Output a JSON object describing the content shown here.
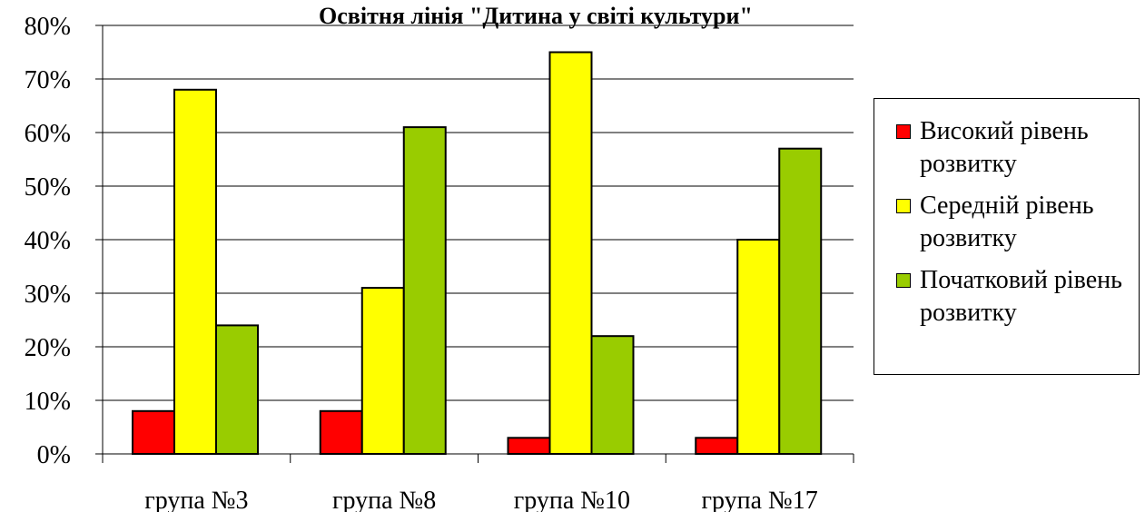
{
  "chart_data": {
    "type": "bar",
    "title": "Освітня лінія \"Дитина у світі культури\"",
    "categories": [
      "група №3",
      "група №8",
      "група №10",
      "група №17"
    ],
    "series": [
      {
        "name": "Високий рівень розвитку",
        "color": "#ff0000",
        "values": [
          8,
          8,
          3,
          3
        ]
      },
      {
        "name": "Середній рівень розвитку",
        "color": "#ffff00",
        "values": [
          68,
          31,
          75,
          40
        ]
      },
      {
        "name": "Початковий рівень розвитку",
        "color": "#99cc00",
        "values": [
          24,
          61,
          22,
          57
        ]
      }
    ],
    "ylim": [
      0,
      80
    ],
    "yticks": [
      {
        "value": 0,
        "label": "0%"
      },
      {
        "value": 10,
        "label": "10%"
      },
      {
        "value": 20,
        "label": "20%"
      },
      {
        "value": 30,
        "label": "30%"
      },
      {
        "value": 40,
        "label": "40%"
      },
      {
        "value": 50,
        "label": "50%"
      },
      {
        "value": 60,
        "label": "60%"
      },
      {
        "value": 70,
        "label": "70%"
      },
      {
        "value": 80,
        "label": "80%"
      }
    ],
    "grid": true,
    "legend": "right"
  }
}
